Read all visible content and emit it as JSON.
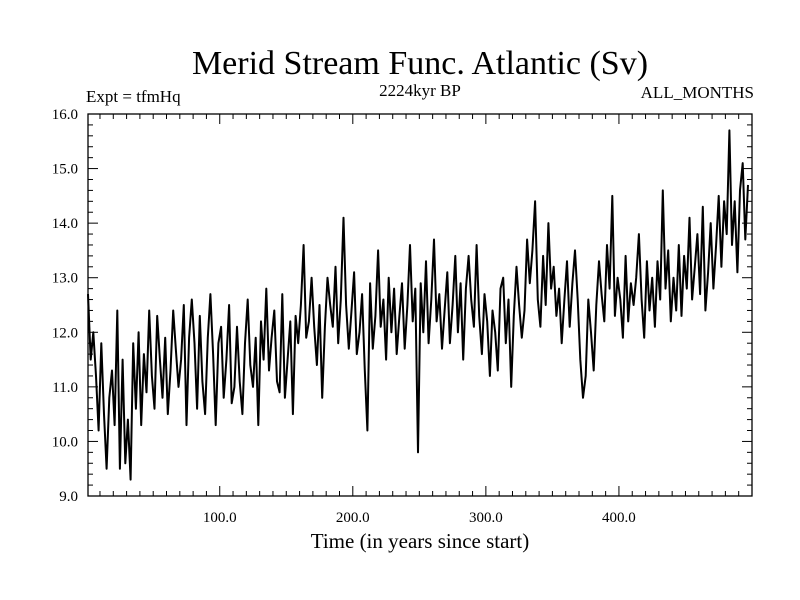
{
  "chart_data": {
    "type": "line",
    "title": "Merid Stream Func. Atlantic (Sv)",
    "subtitle_left": "Expt = tfmHq",
    "subtitle_center": "2224kyr BP",
    "subtitle_right": "ALL_MONTHS",
    "xlabel": "Time (in years since start)",
    "ylabel": "",
    "xlim": [
      1,
      500
    ],
    "ylim": [
      9.0,
      16.0
    ],
    "x_ticks": [
      100,
      200,
      300,
      400
    ],
    "x_tick_labels": [
      "100.0",
      "200.0",
      "300.0",
      "400.0"
    ],
    "y_ticks": [
      9,
      10,
      11,
      12,
      13,
      14,
      15,
      16
    ],
    "y_tick_labels": [
      "9.0",
      "10.0",
      "11.0",
      "12.0",
      "13.0",
      "14.0",
      "15.0",
      "16.0"
    ],
    "grid": false,
    "series": [
      {
        "name": "Merid Stream Func. Atlantic",
        "x_start": 1,
        "x_step": 2,
        "values": [
          12.7,
          11.5,
          12.0,
          11.2,
          10.2,
          11.8,
          10.5,
          9.5,
          10.8,
          11.3,
          10.3,
          12.4,
          9.5,
          11.5,
          9.6,
          10.4,
          9.3,
          11.8,
          10.6,
          12.0,
          10.3,
          11.6,
          10.9,
          12.4,
          11.2,
          10.6,
          12.3,
          11.5,
          10.8,
          11.9,
          10.5,
          11.3,
          12.4,
          11.7,
          11.0,
          11.5,
          12.5,
          10.3,
          11.9,
          12.6,
          11.8,
          10.6,
          12.3,
          11.1,
          10.5,
          11.9,
          12.7,
          11.6,
          10.3,
          11.8,
          12.1,
          10.8,
          11.5,
          12.5,
          10.7,
          11.0,
          12.1,
          11.1,
          10.5,
          11.8,
          12.6,
          11.4,
          11.0,
          11.9,
          10.3,
          12.2,
          11.5,
          12.8,
          11.3,
          11.9,
          12.4,
          11.1,
          10.9,
          12.7,
          10.8,
          11.5,
          12.2,
          10.5,
          12.3,
          11.8,
          12.5,
          13.6,
          11.9,
          12.2,
          13.0,
          12.1,
          11.4,
          12.5,
          10.8,
          12.1,
          13.0,
          12.5,
          12.1,
          13.2,
          11.8,
          12.6,
          14.1,
          12.5,
          11.7,
          12.4,
          13.1,
          11.6,
          12.0,
          12.7,
          11.3,
          10.2,
          12.9,
          11.7,
          12.3,
          13.5,
          12.1,
          12.6,
          11.5,
          13.0,
          12.0,
          12.8,
          11.6,
          12.3,
          12.9,
          11.7,
          12.5,
          13.6,
          12.2,
          12.8,
          9.8,
          12.9,
          12.0,
          13.3,
          11.8,
          12.6,
          13.7,
          12.2,
          12.7,
          11.7,
          12.4,
          13.1,
          11.8,
          12.5,
          13.4,
          12.0,
          12.9,
          11.5,
          12.8,
          13.4,
          12.6,
          12.1,
          13.6,
          12.3,
          11.6,
          12.7,
          12.2,
          11.2,
          12.4,
          12.0,
          11.3,
          12.8,
          13.0,
          11.8,
          12.6,
          11.0,
          12.3,
          13.2,
          12.5,
          11.9,
          12.4,
          13.7,
          12.9,
          13.5,
          14.4,
          12.6,
          12.1,
          13.4,
          12.5,
          14.0,
          12.8,
          13.2,
          12.3,
          12.8,
          11.8,
          12.6,
          13.3,
          12.1,
          12.9,
          13.5,
          12.6,
          11.5,
          10.8,
          11.2,
          12.6,
          12.0,
          11.3,
          12.5,
          13.3,
          12.7,
          12.2,
          13.6,
          12.8,
          14.5,
          12.3,
          13.0,
          12.6,
          11.9,
          13.4,
          12.2,
          12.9,
          12.5,
          13.0,
          13.8,
          12.6,
          11.9,
          13.3,
          12.4,
          13.0,
          12.1,
          13.3,
          12.6,
          14.6,
          12.8,
          13.5,
          12.2,
          13.0,
          12.4,
          13.6,
          12.3,
          13.4,
          12.8,
          14.1,
          12.6,
          13.2,
          13.8,
          12.7,
          14.3,
          12.4,
          13.1,
          14.0,
          12.8,
          13.6,
          14.5,
          13.2,
          14.4,
          13.8,
          15.7,
          13.6,
          14.4,
          13.1,
          14.6,
          15.1,
          13.7,
          14.7
        ]
      }
    ]
  }
}
